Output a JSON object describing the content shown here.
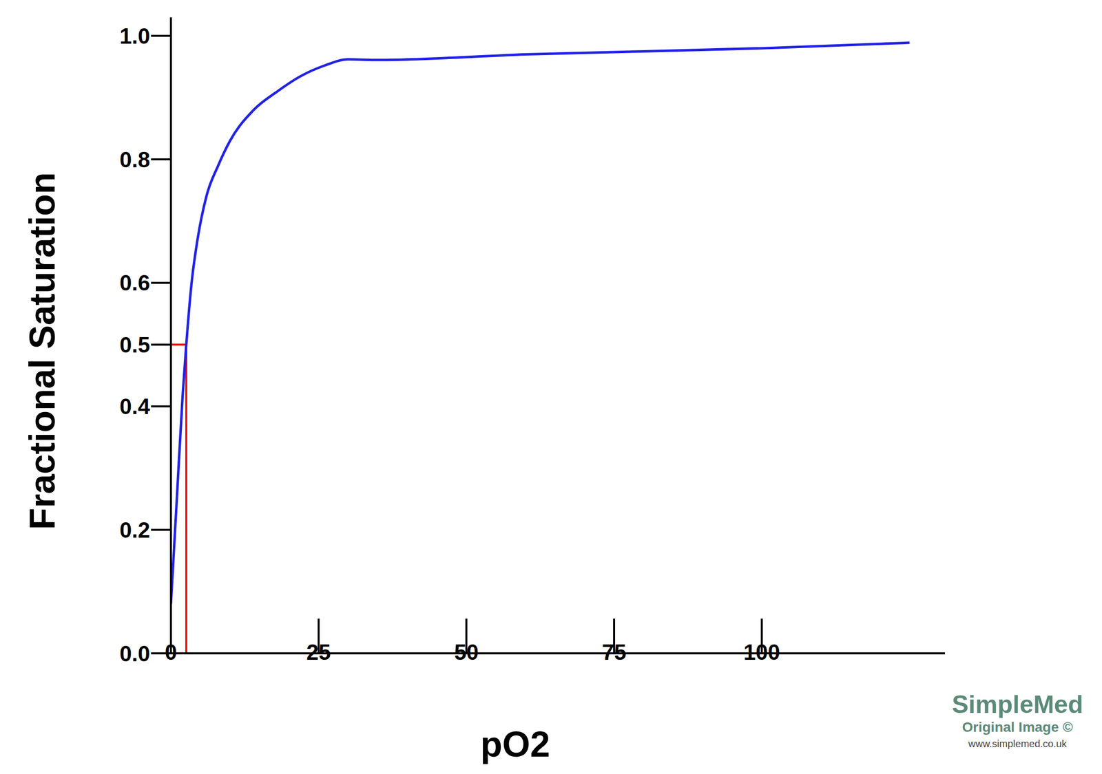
{
  "chart_data": {
    "type": "line",
    "x_label": "pO2",
    "y_label": "Fractional Saturation",
    "x": [
      0,
      1,
      2,
      2.6,
      3.5,
      4.5,
      6,
      8,
      10,
      14,
      18,
      22,
      26,
      30,
      35,
      60,
      100,
      125
    ],
    "values": [
      0.08,
      0.25,
      0.42,
      0.5,
      0.6,
      0.67,
      0.74,
      0.79,
      0.83,
      0.88,
      0.91,
      0.935,
      0.952,
      0.962,
      0.961,
      0.97,
      0.98,
      0.989
    ],
    "color": "#2222e6",
    "xlim": [
      0,
      131
    ],
    "xticks": [
      0,
      25,
      50,
      75,
      100
    ],
    "ylim": [
      0,
      1.03
    ],
    "yticks": [
      {
        "value": 0,
        "label": "0.0"
      },
      0.2,
      0.4,
      0.5,
      0.6,
      0.8,
      {
        "value": 1,
        "label": "1.0"
      }
    ],
    "marker_point": {
      "x": 2.6,
      "y": 0.5,
      "color": "#ff0000"
    },
    "grid": false,
    "legend": "none",
    "watermark": {
      "title": "SimpleMed",
      "subtitle": "Original Image ©",
      "url": "www.simplemed.co.uk"
    }
  }
}
